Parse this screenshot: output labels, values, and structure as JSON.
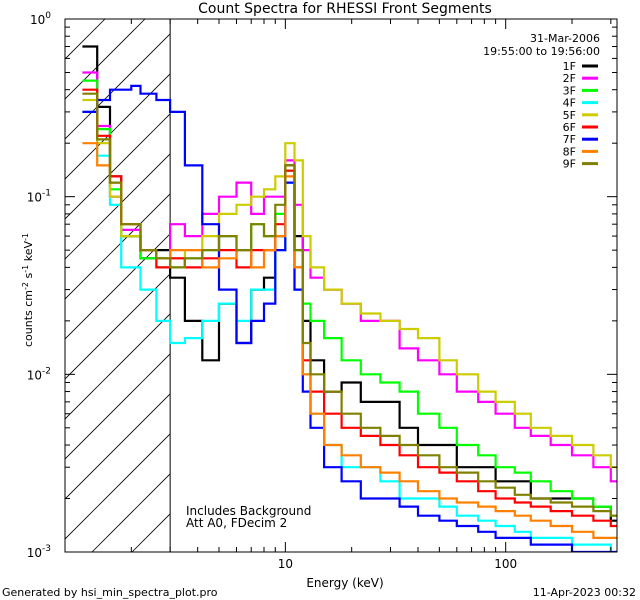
{
  "chart_data": {
    "type": "line",
    "title": "Count Spectra for RHESSI Front Segments",
    "xlabel": "Energy (keV)",
    "ylabel": "counts cm^-2 s^-1 keV^-1",
    "xscale": "log",
    "yscale": "log",
    "xlim": [
      1,
      320
    ],
    "ylim": [
      0.001,
      1
    ],
    "x_ticks": [
      10,
      100
    ],
    "y_ticks": [
      0.001,
      0.01,
      0.1,
      1
    ],
    "x_tick_labels": [
      "10",
      "100"
    ],
    "y_tick_labels": [
      "10",
      "10",
      "10",
      "10"
    ],
    "y_tick_exponents": [
      "-3",
      "-2",
      "-1",
      "0"
    ],
    "legend_position": "top-right",
    "date": "31-Mar-2006",
    "time_range": "19:55:00 to 19:56:00",
    "shaded_region": {
      "x_min": 1,
      "x_max": 3,
      "pattern": "hatched"
    },
    "annotations": [
      "Includes Background",
      "Att A0, FDecim 2"
    ],
    "footer_left": "Generated by hsi_min_spectra_plot.pro",
    "footer_right": "11-Apr-2023 00:32",
    "series": [
      {
        "name": "1F",
        "color": "#000000",
        "x": [
          1.2,
          1.4,
          1.6,
          1.8,
          2.2,
          2.6,
          3.0,
          3.5,
          4.2,
          5,
          6,
          7,
          8,
          9,
          10,
          11,
          12,
          13,
          15,
          18,
          22,
          27,
          33,
          40,
          50,
          60,
          75,
          90,
          110,
          130,
          160,
          200,
          250,
          300
        ],
        "y": [
          0.7,
          0.32,
          0.13,
          0.06,
          0.045,
          0.05,
          0.035,
          0.02,
          0.012,
          0.025,
          0.015,
          0.03,
          0.035,
          0.06,
          0.15,
          0.06,
          0.02,
          0.012,
          0.008,
          0.009,
          0.007,
          0.007,
          0.005,
          0.004,
          0.004,
          0.003,
          0.003,
          0.0025,
          0.0025,
          0.002,
          0.002,
          0.002,
          0.0018,
          0.0015
        ]
      },
      {
        "name": "2F",
        "color": "#ff00ff",
        "x": [
          1.2,
          1.4,
          1.6,
          1.8,
          2.2,
          2.6,
          3.0,
          3.5,
          4.2,
          5,
          6,
          7,
          8,
          9,
          10,
          11,
          12,
          13,
          15,
          18,
          22,
          27,
          33,
          40,
          50,
          60,
          75,
          90,
          110,
          130,
          160,
          200,
          250,
          300
        ],
        "y": [
          0.5,
          0.25,
          0.1,
          0.065,
          0.05,
          0.045,
          0.07,
          0.06,
          0.08,
          0.1,
          0.12,
          0.08,
          0.1,
          0.1,
          0.16,
          0.09,
          0.05,
          0.035,
          0.03,
          0.025,
          0.02,
          0.02,
          0.014,
          0.012,
          0.01,
          0.008,
          0.007,
          0.006,
          0.005,
          0.0045,
          0.004,
          0.0035,
          0.003,
          0.0025
        ]
      },
      {
        "name": "3F",
        "color": "#00ff00",
        "x": [
          1.2,
          1.4,
          1.6,
          1.8,
          2.2,
          2.6,
          3.0,
          3.5,
          4.2,
          5,
          6,
          7,
          8,
          9,
          10,
          11,
          12,
          13,
          15,
          18,
          22,
          27,
          33,
          40,
          50,
          60,
          75,
          90,
          110,
          130,
          160,
          200,
          250,
          300
        ],
        "y": [
          0.45,
          0.24,
          0.11,
          0.06,
          0.045,
          0.045,
          0.04,
          0.045,
          0.05,
          0.06,
          0.05,
          0.07,
          0.06,
          0.08,
          0.14,
          0.05,
          0.025,
          0.02,
          0.016,
          0.012,
          0.01,
          0.009,
          0.008,
          0.006,
          0.005,
          0.004,
          0.0035,
          0.003,
          0.0028,
          0.0025,
          0.0022,
          0.002,
          0.0018,
          0.0016
        ]
      },
      {
        "name": "4F",
        "color": "#00ffff",
        "x": [
          1.2,
          1.4,
          1.6,
          1.8,
          2.2,
          2.6,
          3.0,
          3.5,
          4.2,
          5,
          6,
          7,
          8,
          9,
          10,
          11,
          12,
          13,
          15,
          18,
          22,
          27,
          33,
          40,
          50,
          60,
          75,
          90,
          110,
          130,
          160,
          200,
          250,
          300
        ],
        "y": [
          0.3,
          0.17,
          0.09,
          0.04,
          0.03,
          0.02,
          0.015,
          0.016,
          0.02,
          0.025,
          0.02,
          0.03,
          0.03,
          0.05,
          0.12,
          0.03,
          0.01,
          0.006,
          0.004,
          0.003,
          0.003,
          0.0025,
          0.002,
          0.002,
          0.0018,
          0.0016,
          0.0015,
          0.0014,
          0.0013,
          0.0012,
          0.0012,
          0.0011,
          0.0011,
          0.001
        ]
      },
      {
        "name": "5F",
        "color": "#cccc00",
        "x": [
          1.2,
          1.4,
          1.6,
          1.8,
          2.2,
          2.6,
          3.0,
          3.5,
          4.2,
          5,
          6,
          7,
          8,
          9,
          10,
          11,
          12,
          13,
          15,
          18,
          22,
          27,
          33,
          40,
          50,
          60,
          75,
          90,
          110,
          130,
          160,
          200,
          250,
          300
        ],
        "y": [
          0.35,
          0.2,
          0.1,
          0.06,
          0.05,
          0.04,
          0.045,
          0.05,
          0.06,
          0.08,
          0.09,
          0.1,
          0.11,
          0.13,
          0.2,
          0.16,
          0.06,
          0.04,
          0.03,
          0.025,
          0.022,
          0.02,
          0.018,
          0.016,
          0.012,
          0.01,
          0.008,
          0.007,
          0.006,
          0.005,
          0.0045,
          0.004,
          0.0035,
          0.003
        ]
      },
      {
        "name": "6F",
        "color": "#ff0000",
        "x": [
          1.2,
          1.4,
          1.6,
          1.8,
          2.2,
          2.6,
          3.0,
          3.5,
          4.2,
          5,
          6,
          7,
          8,
          9,
          10,
          11,
          12,
          13,
          15,
          18,
          22,
          27,
          33,
          40,
          50,
          60,
          75,
          90,
          110,
          130,
          160,
          200,
          250,
          300
        ],
        "y": [
          0.4,
          0.22,
          0.13,
          0.07,
          0.05,
          0.04,
          0.045,
          0.04,
          0.045,
          0.05,
          0.04,
          0.05,
          0.05,
          0.07,
          0.14,
          0.04,
          0.012,
          0.008,
          0.006,
          0.005,
          0.0045,
          0.004,
          0.0035,
          0.003,
          0.0028,
          0.0025,
          0.0022,
          0.002,
          0.0019,
          0.0018,
          0.0017,
          0.0016,
          0.0015,
          0.0014
        ]
      },
      {
        "name": "7F",
        "color": "#0000ff",
        "x": [
          1.2,
          1.4,
          1.6,
          1.8,
          2.0,
          2.2,
          2.6,
          3.0,
          3.5,
          4.2,
          5,
          6,
          7,
          8,
          9,
          10,
          11,
          12,
          13,
          15,
          18,
          22,
          27,
          33,
          40,
          50,
          60,
          75,
          90,
          110,
          130,
          160,
          200,
          250,
          300
        ],
        "y": [
          0.3,
          0.35,
          0.4,
          0.4,
          0.42,
          0.38,
          0.35,
          0.3,
          0.15,
          0.07,
          0.03,
          0.015,
          0.02,
          0.025,
          0.05,
          0.12,
          0.03,
          0.008,
          0.005,
          0.003,
          0.0025,
          0.002,
          0.002,
          0.0018,
          0.0016,
          0.0015,
          0.0014,
          0.0013,
          0.0012,
          0.0012,
          0.0011,
          0.0011,
          0.001,
          0.001,
          0.001
        ]
      },
      {
        "name": "8F",
        "color": "#ff8000",
        "x": [
          1.2,
          1.4,
          1.6,
          1.8,
          2.2,
          2.6,
          3.0,
          3.5,
          4.2,
          5,
          6,
          7,
          8,
          9,
          10,
          11,
          12,
          13,
          15,
          18,
          22,
          27,
          33,
          40,
          50,
          60,
          75,
          90,
          110,
          130,
          160,
          200,
          250,
          300
        ],
        "y": [
          0.2,
          0.15,
          0.12,
          0.07,
          0.05,
          0.045,
          0.05,
          0.05,
          0.04,
          0.045,
          0.05,
          0.04,
          0.05,
          0.06,
          0.13,
          0.04,
          0.01,
          0.006,
          0.004,
          0.0035,
          0.003,
          0.0028,
          0.0025,
          0.0022,
          0.002,
          0.0019,
          0.0018,
          0.0017,
          0.0016,
          0.0015,
          0.0014,
          0.0013,
          0.0012,
          0.0012
        ]
      },
      {
        "name": "9F",
        "color": "#808000",
        "x": [
          1.2,
          1.4,
          1.6,
          1.8,
          2.2,
          2.6,
          3.0,
          3.5,
          4.2,
          5,
          6,
          7,
          8,
          9,
          10,
          11,
          12,
          13,
          15,
          18,
          22,
          27,
          33,
          40,
          50,
          60,
          75,
          90,
          110,
          130,
          160,
          200,
          250,
          300
        ],
        "y": [
          0.38,
          0.21,
          0.12,
          0.07,
          0.05,
          0.045,
          0.04,
          0.045,
          0.05,
          0.06,
          0.05,
          0.07,
          0.06,
          0.09,
          0.15,
          0.05,
          0.015,
          0.01,
          0.008,
          0.006,
          0.005,
          0.0045,
          0.004,
          0.0035,
          0.003,
          0.0028,
          0.0025,
          0.0023,
          0.0021,
          0.002,
          0.0019,
          0.0018,
          0.0017,
          0.0016
        ]
      }
    ]
  }
}
